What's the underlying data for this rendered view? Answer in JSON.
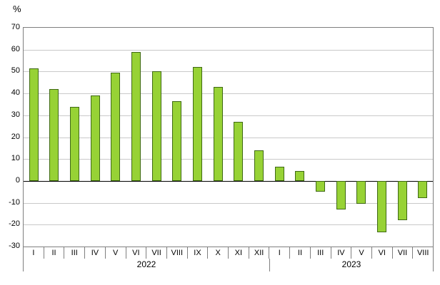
{
  "chart_data": {
    "type": "bar",
    "ylabel": "%",
    "ylim": [
      -30,
      70
    ],
    "ytick_step": 10,
    "grid": true,
    "legend": false,
    "bar_color": "#97d235",
    "bar_border": "#3f6914",
    "groups": [
      {
        "year": "2022",
        "categories": [
          "I",
          "II",
          "III",
          "IV",
          "V",
          "VI",
          "VII",
          "VIII",
          "IX",
          "X",
          "XI",
          "XII"
        ],
        "values": [
          51.5,
          42,
          34,
          39,
          49.5,
          59,
          50,
          36.5,
          52,
          43,
          27,
          14
        ]
      },
      {
        "year": "2023",
        "categories": [
          "I",
          "II",
          "III",
          "IV",
          "V",
          "VI",
          "VII",
          "VIII"
        ],
        "values": [
          6.5,
          4.5,
          -5,
          -13,
          -10.5,
          -23.5,
          -18,
          -8
        ]
      }
    ]
  }
}
